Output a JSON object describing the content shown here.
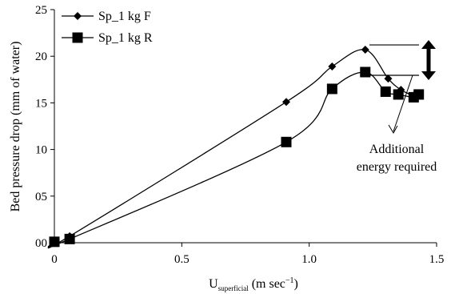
{
  "chart_data": {
    "type": "line",
    "title": "",
    "xlabel": {
      "main": "U",
      "subscript": "superficial",
      "unit_prefix": " (m sec",
      "unit_sup": "−1",
      "unit_suffix": ")"
    },
    "ylabel": "Bed pressure drop (mm of water)",
    "xlim": [
      0,
      1.5
    ],
    "ylim": [
      0,
      25
    ],
    "xticks": [
      {
        "value": 0,
        "label": "0"
      },
      {
        "value": 0.5,
        "label": "0.5"
      },
      {
        "value": 1.0,
        "label": "1.0"
      },
      {
        "value": 1.5,
        "label": "1.5"
      }
    ],
    "yticks": [
      {
        "value": 0,
        "label": "00"
      },
      {
        "value": 5,
        "label": "05"
      },
      {
        "value": 10,
        "label": "10"
      },
      {
        "value": 15,
        "label": "15"
      },
      {
        "value": 20,
        "label": "20"
      },
      {
        "value": 25,
        "label": "25"
      }
    ],
    "grid": false,
    "legend_position": "top-left",
    "series": [
      {
        "name": "Sp_1 kg F",
        "marker": "diamond",
        "color": "#000000",
        "x": [
          0,
          0.06,
          0.91,
          1.09,
          1.22,
          1.31,
          1.36,
          1.41,
          1.43
        ],
        "y": [
          0.1,
          0.7,
          15.1,
          18.9,
          20.7,
          17.6,
          16.4,
          15.8,
          15.9
        ]
      },
      {
        "name": "Sp_1 kg R",
        "marker": "square",
        "color": "#000000",
        "x": [
          0,
          0.06,
          0.91,
          1.09,
          1.22,
          1.3,
          1.35,
          1.41,
          1.43
        ],
        "y": [
          0.1,
          0.4,
          10.8,
          16.5,
          18.3,
          16.2,
          15.9,
          15.6,
          15.9
        ]
      }
    ],
    "annotation": {
      "lines": [
        "Additional",
        "energy required"
      ]
    }
  }
}
